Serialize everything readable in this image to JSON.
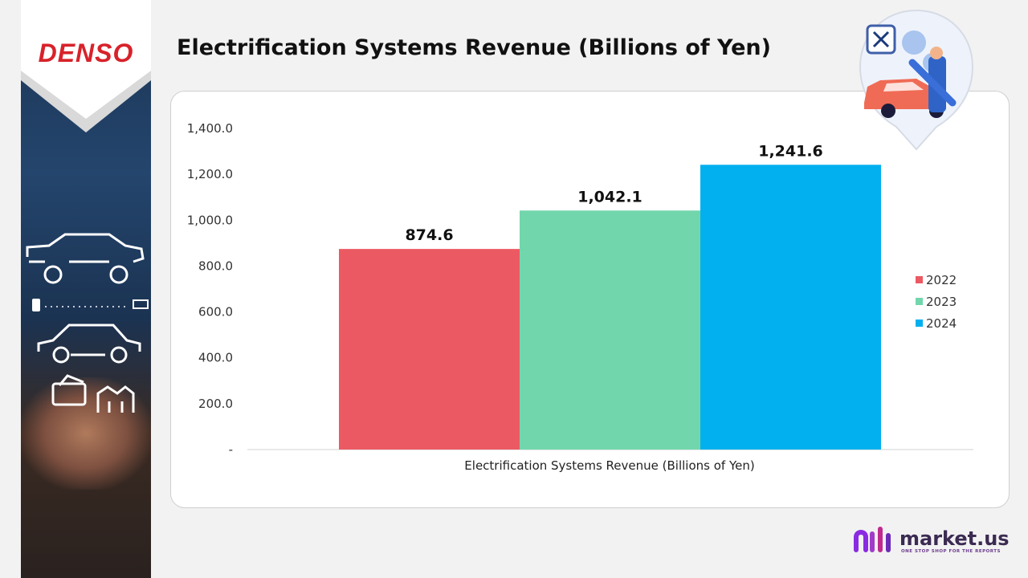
{
  "brand": {
    "company_logo": "DENSO",
    "publisher_name": "market.us",
    "publisher_tagline": "ONE STOP SHOP FOR THE REPORTS"
  },
  "page": {
    "title": "Electrification Systems Revenue (Billions of Yen)"
  },
  "icons": [
    "car-outline-icon",
    "charging-icon",
    "car-outline-icon",
    "box-check-icon",
    "factory-icon",
    "mechanic-car-icon",
    "gear-icon",
    "wrench-screwdriver-icon"
  ],
  "colors": {
    "accent": "#d8222a",
    "bar_2022": "#eb5a63",
    "bar_2023": "#72d6ac",
    "bar_2024": "#03b0ef"
  },
  "chart_data": {
    "type": "bar",
    "title": "Electrification Systems Revenue (Billions of Yen)",
    "categories": [
      "Electrification Systems Revenue (Billions of Yen)"
    ],
    "xlabel": "Electrification Systems Revenue (Billions of Yen)",
    "ylabel": "",
    "ylim": [
      0,
      1400
    ],
    "yticks": [
      "-",
      "200.0",
      "400.0",
      "600.0",
      "800.0",
      "1,000.0",
      "1,200.0",
      "1,400.0"
    ],
    "grid": false,
    "legend_position": "right",
    "series": [
      {
        "name": "2022",
        "values": [
          874.6
        ],
        "label": "874.6",
        "color": "#eb5a63"
      },
      {
        "name": "2023",
        "values": [
          1042.1
        ],
        "label": "1,042.1",
        "color": "#72d6ac"
      },
      {
        "name": "2024",
        "values": [
          1241.6
        ],
        "label": "1,241.6",
        "color": "#03b0ef"
      }
    ]
  }
}
